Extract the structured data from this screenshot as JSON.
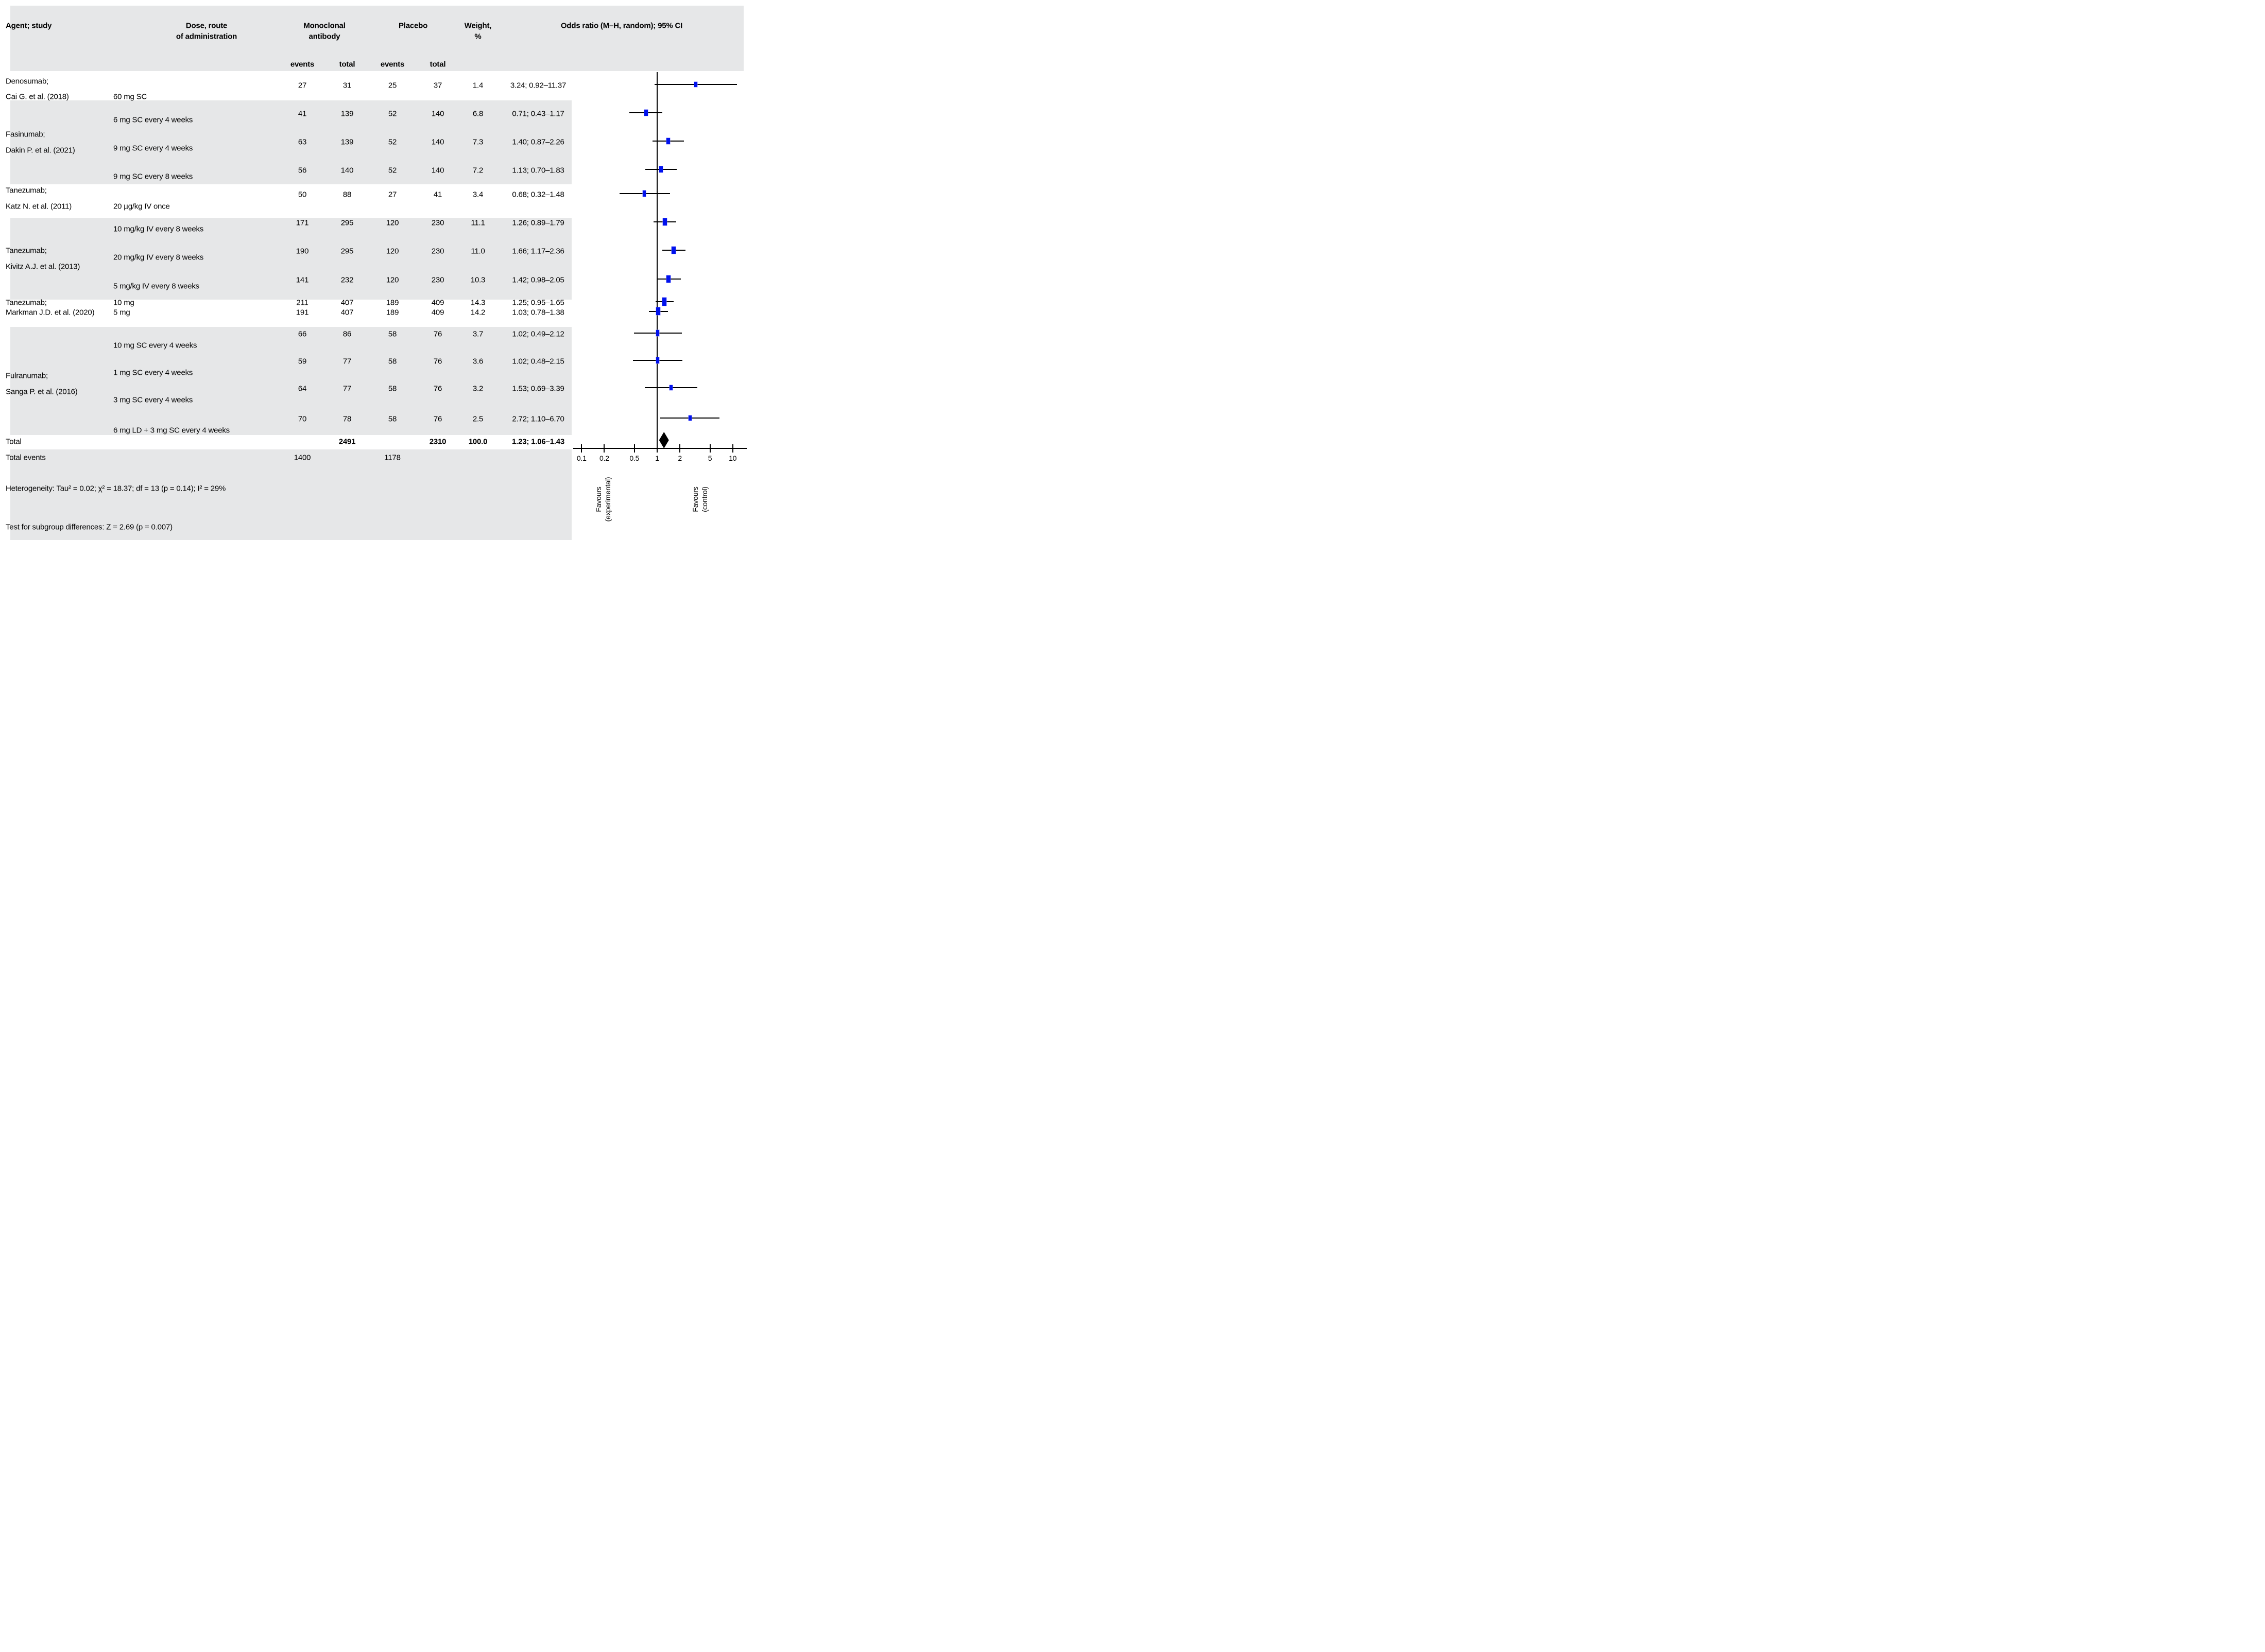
{
  "header": {
    "agent": "Agent; study",
    "dose": [
      "Dose, route",
      "of administration"
    ],
    "mab": [
      "Monoclonal",
      "antibody"
    ],
    "placebo": "Placebo",
    "weight": [
      "Weight,",
      "%"
    ],
    "or": "Odds ratio (M–H, random); 95% CI",
    "sub": [
      "events",
      "total",
      "events",
      "total"
    ]
  },
  "blocks": [
    {
      "agent": [
        "Denosumab;",
        "Cai G. et al. (2018)"
      ],
      "rows": [
        {
          "dose": "60 mg SC",
          "e1": "27",
          "t1": "31",
          "e2": "25",
          "t2": "37",
          "w": "1.4",
          "or": "3.24; 0.92–11.37"
        }
      ]
    },
    {
      "agent": [
        "Fasinumab;",
        "Dakin P. et al. (2021)"
      ],
      "rows": [
        {
          "dose": "6 mg SC every 4 weeks",
          "e1": "41",
          "t1": "139",
          "e2": "52",
          "t2": "140",
          "w": "6.8",
          "or": "0.71; 0.43–1.17"
        },
        {
          "dose": "9 mg SC every 4 weeks",
          "e1": "63",
          "t1": "139",
          "e2": "52",
          "t2": "140",
          "w": "7.3",
          "or": "1.40; 0.87–2.26"
        },
        {
          "dose": "9 mg SC every 8 weeks",
          "e1": "56",
          "t1": "140",
          "e2": "52",
          "t2": "140",
          "w": "7.2",
          "or": "1.13; 0.70–1.83"
        }
      ]
    },
    {
      "agent": [
        "Tanezumab;",
        "Katz N. et al. (2011)"
      ],
      "rows": [
        {
          "dose": "20 µg/kg IV once",
          "e1": "50",
          "t1": "88",
          "e2": "27",
          "t2": "41",
          "w": "3.4",
          "or": "0.68; 0.32–1.48"
        }
      ]
    },
    {
      "agent": [
        "Tanezumab;",
        "Kivitz A.J. et al. (2013)"
      ],
      "rows": [
        {
          "dose": "10 mg/kg IV every 8 weeks",
          "e1": "171",
          "t1": "295",
          "e2": "120",
          "t2": "230",
          "w": "11.1",
          "or": "1.26; 0.89–1.79"
        },
        {
          "dose": "20 mg/kg IV every 8 weeks",
          "e1": "190",
          "t1": "295",
          "e2": "120",
          "t2": "230",
          "w": "11.0",
          "or": "1.66; 1.17–2.36"
        },
        {
          "dose": "5 mg/kg IV every 8 weeks",
          "e1": "141",
          "t1": "232",
          "e2": "120",
          "t2": "230",
          "w": "10.3",
          "or": "1.42; 0.98–2.05"
        }
      ]
    },
    {
      "agent": [
        "Tanezumab;",
        "Markman J.D. et al. (2020)"
      ],
      "rows": [
        {
          "dose": "10 mg",
          "e1": "211",
          "t1": "407",
          "e2": "189",
          "t2": "409",
          "w": "14.3",
          "or": "1.25; 0.95–1.65"
        },
        {
          "dose": "5 mg",
          "e1": "191",
          "t1": "407",
          "e2": "189",
          "t2": "409",
          "w": "14.2",
          "or": "1.03; 0.78–1.38"
        }
      ]
    },
    {
      "agent": [
        "Fulranumab;",
        "Sanga P. et al. (2016)"
      ],
      "rows": [
        {
          "dose": "10 mg SC every 4 weeks",
          "e1": "66",
          "t1": "86",
          "e2": "58",
          "t2": "76",
          "w": "3.7",
          "or": "1.02; 0.49–2.12"
        },
        {
          "dose": "1 mg SC every 4 weeks",
          "e1": "59",
          "t1": "77",
          "e2": "58",
          "t2": "76",
          "w": "3.6",
          "or": "1.02; 0.48–2.15"
        },
        {
          "dose": "3 mg SC every 4 weeks",
          "e1": "64",
          "t1": "77",
          "e2": "58",
          "t2": "76",
          "w": "3.2",
          "or": "1.53; 0.69–3.39"
        },
        {
          "dose": "6 mg LD + 3 mg SC every 4 weeks",
          "e1": "70",
          "t1": "78",
          "e2": "58",
          "t2": "76",
          "w": "2.5",
          "or": "2.72; 1.10–6.70"
        }
      ]
    }
  ],
  "totals": {
    "label": "Total",
    "t1": "2491",
    "t2": "2310",
    "w": "100.0",
    "or": "1.23; 1.06–1.43",
    "events_label": "Total events",
    "e1": "1400",
    "e2": "1178"
  },
  "footnotes": {
    "heterogeneity": "Heterogeneity: Tau² = 0.02; χ² = 18.37; df = 13 (p = 0.14); I² = 29%",
    "subgroup": "Test for subgroup differences: Z = 2.69 (p = 0.007)"
  },
  "axis": {
    "tick_labels": [
      "0.1",
      "0.2",
      "0.5",
      "1",
      "2",
      "5",
      "10"
    ],
    "favours_left": [
      "Favours",
      "(experimental)"
    ],
    "favours_right": [
      "Favours",
      "(control)"
    ]
  },
  "colors": {
    "band": "#e6e7e8",
    "marker": "#0011ee",
    "line": "#000000"
  },
  "chart_data": {
    "type": "forest",
    "x_scale": "log10",
    "x_ticks": [
      0.1,
      0.2,
      0.5,
      1,
      2,
      5,
      10
    ],
    "null_line": 1,
    "legend_left": "Favours (experimental)",
    "legend_right": "Favours (control)",
    "effect_measure": "Odds ratio (M–H, random); 95% CI",
    "studies": [
      {
        "label": "Denosumab; Cai G. et al. (2018) — 60 mg SC",
        "or": 3.24,
        "ci": [
          0.92,
          11.37
        ],
        "weight": 1.4
      },
      {
        "label": "Fasinumab; Dakin P. et al. (2021) — 6 mg SC every 4 weeks",
        "or": 0.71,
        "ci": [
          0.43,
          1.17
        ],
        "weight": 6.8
      },
      {
        "label": "Fasinumab; Dakin P. et al. (2021) — 9 mg SC every 4 weeks",
        "or": 1.4,
        "ci": [
          0.87,
          2.26
        ],
        "weight": 7.3
      },
      {
        "label": "Fasinumab; Dakin P. et al. (2021) — 9 mg SC every 8 weeks",
        "or": 1.13,
        "ci": [
          0.7,
          1.83
        ],
        "weight": 7.2
      },
      {
        "label": "Tanezumab; Katz N. et al. (2011) — 20 µg/kg IV once",
        "or": 0.68,
        "ci": [
          0.32,
          1.48
        ],
        "weight": 3.4
      },
      {
        "label": "Tanezumab; Kivitz A.J. et al. (2013) — 10 mg/kg IV every 8 weeks",
        "or": 1.26,
        "ci": [
          0.89,
          1.79
        ],
        "weight": 11.1
      },
      {
        "label": "Tanezumab; Kivitz A.J. et al. (2013) — 20 mg/kg IV every 8 weeks",
        "or": 1.66,
        "ci": [
          1.17,
          2.36
        ],
        "weight": 11.0
      },
      {
        "label": "Tanezumab; Kivitz A.J. et al. (2013) — 5 mg/kg IV every 8 weeks",
        "or": 1.42,
        "ci": [
          0.98,
          2.05
        ],
        "weight": 10.3
      },
      {
        "label": "Tanezumab; Markman J.D. et al. (2020) — 10 mg",
        "or": 1.25,
        "ci": [
          0.95,
          1.65
        ],
        "weight": 14.3
      },
      {
        "label": "Tanezumab; Markman J.D. et al. (2020) — 5 mg",
        "or": 1.03,
        "ci": [
          0.78,
          1.38
        ],
        "weight": 14.2
      },
      {
        "label": "Fulranumab; Sanga P. et al. (2016) — 10 mg SC every 4 weeks",
        "or": 1.02,
        "ci": [
          0.49,
          2.12
        ],
        "weight": 3.7
      },
      {
        "label": "Fulranumab; Sanga P. et al. (2016) — 1 mg SC every 4 weeks",
        "or": 1.02,
        "ci": [
          0.48,
          2.15
        ],
        "weight": 3.6
      },
      {
        "label": "Fulranumab; Sanga P. et al. (2016) — 3 mg SC every 4 weeks",
        "or": 1.53,
        "ci": [
          0.69,
          3.39
        ],
        "weight": 3.2
      },
      {
        "label": "Fulranumab; Sanga P. et al. (2016) — 6 mg LD + 3 mg SC every 4 weeks",
        "or": 2.72,
        "ci": [
          1.1,
          6.7
        ],
        "weight": 2.5
      }
    ],
    "overall": {
      "label": "Total",
      "or": 1.23,
      "ci": [
        1.06,
        1.43
      ],
      "weight": 100.0,
      "mab_total": 2491,
      "placebo_total": 2310,
      "mab_events": 1400,
      "placebo_events": 1178
    },
    "heterogeneity": {
      "tau2": 0.02,
      "chi2": 18.37,
      "df": 13,
      "p": 0.14,
      "I2_pct": 29
    },
    "subgroup_test": {
      "Z": 2.69,
      "p": 0.007
    }
  }
}
